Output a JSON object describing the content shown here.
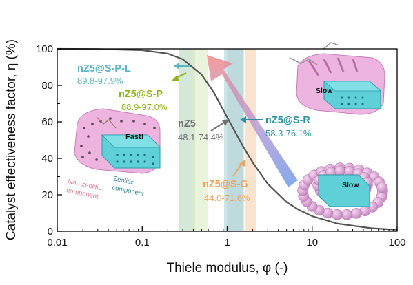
{
  "chart_data": {
    "type": "line",
    "xscale": "log",
    "xlim": [
      0.01,
      100
    ],
    "ylim": [
      0,
      100
    ],
    "xlabel": "Thiele modulus, φ (-)",
    "ylabel": "Catalyst effectiveness factor, η (%)",
    "xticks": [
      "0.01",
      "0.1",
      "1",
      "10",
      "100"
    ],
    "yticks": [
      "0",
      "20",
      "40",
      "60",
      "80",
      "100"
    ],
    "grid": false,
    "series": [
      {
        "x": [
          0.01,
          0.03,
          0.1,
          0.2,
          0.3,
          0.5,
          0.7,
          1.0,
          1.5,
          2.0,
          3.0,
          5.0,
          7.0,
          10,
          20,
          50,
          100
        ],
        "values": [
          100,
          99.9,
          99.3,
          97.4,
          94.3,
          85.9,
          76.0,
          62.5,
          47.4,
          37.7,
          26.0,
          16.0,
          11.7,
          8.3,
          4.2,
          1.7,
          0.8
        ],
        "color": "#555555"
      }
    ],
    "bands": [
      {
        "label": "nZ5@S-P-L",
        "range": "89.8-97.9%",
        "x": [
          0.27,
          0.42
        ],
        "color": "#b8d7c0",
        "text_color": "#5bb3c4"
      },
      {
        "label": "nZ5@S-P",
        "range": "88.9-97.0%",
        "x": [
          0.38,
          0.6
        ],
        "color": "#dcecc7",
        "text_color": "#8db51a"
      },
      {
        "label": "nZ5",
        "range": "48.1-74.4%",
        "x": [
          1.0,
          1.58
        ],
        "color": "#c9d5d8",
        "text_color": "#707070"
      },
      {
        "label": "nZ5@S-R",
        "range": "58.3-76.1%",
        "x": [
          0.92,
          1.55
        ],
        "color": "#a9d2d6",
        "text_color": "#2e8fa0"
      },
      {
        "label": "nZ5@S-G",
        "range": "44.0-71.6%",
        "x": [
          1.62,
          2.2
        ],
        "color": "#f3d1ad",
        "text_color": "#f0a25f"
      }
    ],
    "annotations": [
      "Fast!",
      "Slow",
      "Slow",
      "Non-zeolitic component",
      "Zeolitic component"
    ]
  },
  "colors": {
    "curve": "#555555",
    "arrow_start": "#6f9be8",
    "arrow_end": "#f28a8a",
    "shell": "#e7a5d6",
    "core": "#5fd0d7"
  },
  "illustrations": {
    "left_labels": {
      "fast": "Fast!",
      "nonzeo": "Non-zeolitic component",
      "zeo": "Zeolitic component"
    },
    "top_right_label": "Slow",
    "bottom_right_label": "Slow"
  }
}
